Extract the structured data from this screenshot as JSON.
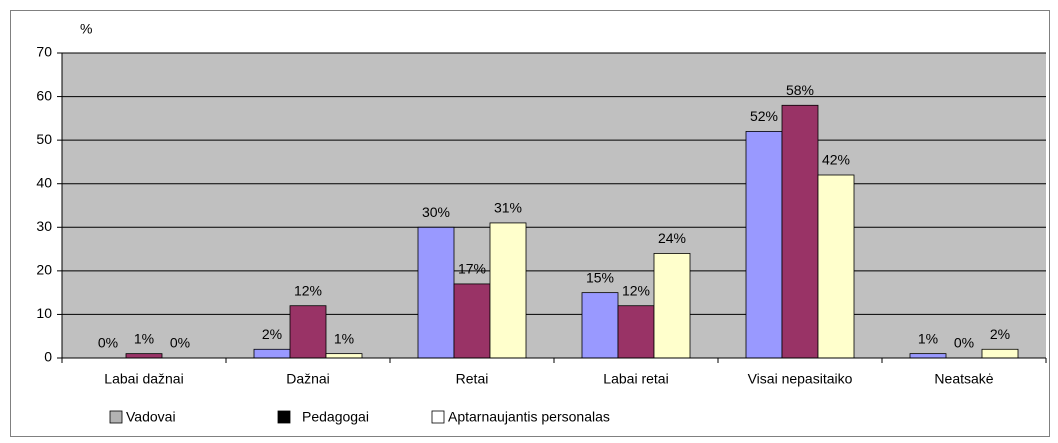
{
  "chart_data": {
    "type": "bar",
    "y_label": "%",
    "categories": [
      "Labai dažnai",
      "Dažnai",
      "Retai",
      "Labai retai",
      "Visai nepasitaiko",
      "Neatsakė"
    ],
    "series": [
      {
        "name": "Vadovai",
        "color": "#9999ff",
        "legend_color": "#b3b3b3",
        "values": [
          0,
          2,
          30,
          15,
          52,
          1
        ],
        "value_labels": [
          "0%",
          "2%",
          "30%",
          "15%",
          "52%",
          "1%"
        ]
      },
      {
        "name": "Pedagogai",
        "color": "#993366",
        "legend_color": "#000000",
        "values": [
          1,
          12,
          17,
          12,
          58,
          0
        ],
        "value_labels": [
          "1%",
          "12%",
          "17%",
          "12%",
          "58%",
          "0%"
        ]
      },
      {
        "name": "Aptarnaujantis personalas",
        "color": "#ffffcc",
        "legend_color": "#ffffff",
        "values": [
          0,
          1,
          31,
          24,
          42,
          2
        ],
        "value_labels": [
          "0%",
          "1%",
          "31%",
          "24%",
          "42%",
          "2%"
        ]
      }
    ],
    "ylim": [
      0,
      70
    ],
    "yticks": [
      0,
      10,
      20,
      30,
      40,
      50,
      60,
      70
    ],
    "grid": true,
    "plot_background": "#c0c0c0"
  }
}
